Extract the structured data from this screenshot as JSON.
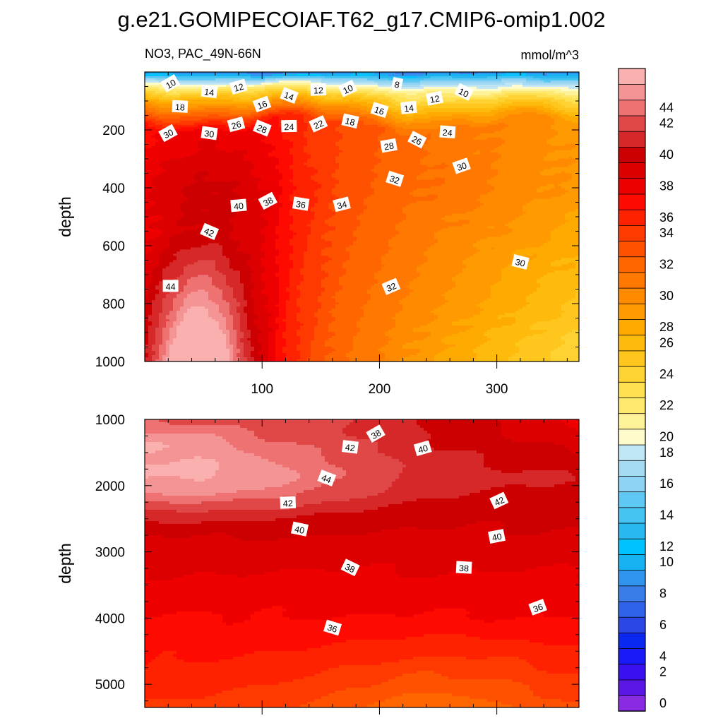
{
  "chart_data": {
    "type": "heatmap",
    "title": "g.e21.GOMIPECOIAF.T62_g17.CMIP6-omip1.002",
    "subtitle_left": "NO3, PAC_49N-66N",
    "units": "mmol/m^3",
    "panels": [
      {
        "name": "upper",
        "ylabel": "depth",
        "ylim": [
          0,
          1000
        ],
        "yticks": [
          "200",
          "400",
          "600",
          "800",
          "1000"
        ],
        "xlim": [
          0,
          370
        ],
        "xticks": [
          "100",
          "200",
          "300"
        ],
        "contour_labels": [
          {
            "text": "10",
            "x": 22,
            "d": 40
          },
          {
            "text": "14",
            "x": 55,
            "d": 68
          },
          {
            "text": "12",
            "x": 80,
            "d": 52
          },
          {
            "text": "14",
            "x": 123,
            "d": 82
          },
          {
            "text": "12",
            "x": 148,
            "d": 62
          },
          {
            "text": "10",
            "x": 173,
            "d": 58
          },
          {
            "text": "8",
            "x": 215,
            "d": 42
          },
          {
            "text": "12",
            "x": 247,
            "d": 92
          },
          {
            "text": "10",
            "x": 272,
            "d": 70
          },
          {
            "text": "18",
            "x": 30,
            "d": 120
          },
          {
            "text": "16",
            "x": 100,
            "d": 112
          },
          {
            "text": "16",
            "x": 200,
            "d": 132
          },
          {
            "text": "14",
            "x": 225,
            "d": 124
          },
          {
            "text": "30",
            "x": 20,
            "d": 212
          },
          {
            "text": "30",
            "x": 55,
            "d": 212
          },
          {
            "text": "26",
            "x": 78,
            "d": 182
          },
          {
            "text": "28",
            "x": 100,
            "d": 195
          },
          {
            "text": "24",
            "x": 123,
            "d": 188
          },
          {
            "text": "22",
            "x": 148,
            "d": 180
          },
          {
            "text": "18",
            "x": 175,
            "d": 170
          },
          {
            "text": "28",
            "x": 208,
            "d": 255
          },
          {
            "text": "26",
            "x": 232,
            "d": 235
          },
          {
            "text": "24",
            "x": 258,
            "d": 208
          },
          {
            "text": "30",
            "x": 270,
            "d": 325
          },
          {
            "text": "32",
            "x": 213,
            "d": 370
          },
          {
            "text": "40",
            "x": 80,
            "d": 462
          },
          {
            "text": "38",
            "x": 105,
            "d": 446
          },
          {
            "text": "36",
            "x": 133,
            "d": 456
          },
          {
            "text": "34",
            "x": 168,
            "d": 458
          },
          {
            "text": "42",
            "x": 55,
            "d": 552
          },
          {
            "text": "44",
            "x": 22,
            "d": 740
          },
          {
            "text": "32",
            "x": 210,
            "d": 742
          },
          {
            "text": "30",
            "x": 320,
            "d": 657
          }
        ]
      },
      {
        "name": "lower",
        "ylabel": "depth",
        "ylim": [
          1000,
          5350
        ],
        "yticks": [
          "1000",
          "2000",
          "3000",
          "4000",
          "5000"
        ],
        "xlim": [
          0,
          370
        ],
        "contour_labels": [
          {
            "text": "38",
            "x": 197,
            "d": 1220
          },
          {
            "text": "42",
            "x": 175,
            "d": 1420
          },
          {
            "text": "40",
            "x": 237,
            "d": 1440
          },
          {
            "text": "44",
            "x": 155,
            "d": 1890
          },
          {
            "text": "42",
            "x": 122,
            "d": 2260
          },
          {
            "text": "42",
            "x": 302,
            "d": 2230
          },
          {
            "text": "40",
            "x": 132,
            "d": 2660
          },
          {
            "text": "40",
            "x": 300,
            "d": 2770
          },
          {
            "text": "38",
            "x": 175,
            "d": 3240
          },
          {
            "text": "38",
            "x": 272,
            "d": 3240
          },
          {
            "text": "36",
            "x": 335,
            "d": 3840
          },
          {
            "text": "36",
            "x": 160,
            "d": 4150
          }
        ]
      }
    ],
    "colorbar": {
      "levels": [
        0,
        2,
        4,
        6,
        8,
        10,
        12,
        14,
        16,
        18,
        20,
        22,
        24,
        26,
        28,
        30,
        32,
        34,
        36,
        38,
        40,
        42,
        44
      ],
      "labels": [
        "0",
        "2",
        "4",
        "6",
        "8",
        "10",
        "12",
        "14",
        "16",
        "18",
        "20",
        "22",
        "24",
        "26",
        "28",
        "30",
        "32",
        "34",
        "36",
        "38",
        "40",
        "42",
        "44"
      ],
      "colors": [
        "#8a2be2",
        "#5a17e6",
        "#3a10ee",
        "#1a1af8",
        "#0a28f0",
        "#2b48e6",
        "#2f64ea",
        "#3a7de8",
        "#2f95ee",
        "#17b2f2",
        "#00c2ff",
        "#2ab8f0",
        "#45c4f2",
        "#60c8f4",
        "#8ed3f4",
        "#a5daf3",
        "#c0e6f6",
        "#fffccc",
        "#fff39a",
        "#ffe870",
        "#ffe050",
        "#ffd233",
        "#ffc71e",
        "#ffba0e",
        "#ffaa00",
        "#ff9a00",
        "#ff8a00",
        "#ff7800",
        "#ff6600",
        "#ff5200",
        "#ff3a00",
        "#ff2200",
        "#ff0a00",
        "#ee0000",
        "#dd0000",
        "#cc0000",
        "#d62828",
        "#e04848",
        "#ee7272",
        "#f59494",
        "#fbb0b0"
      ]
    }
  }
}
